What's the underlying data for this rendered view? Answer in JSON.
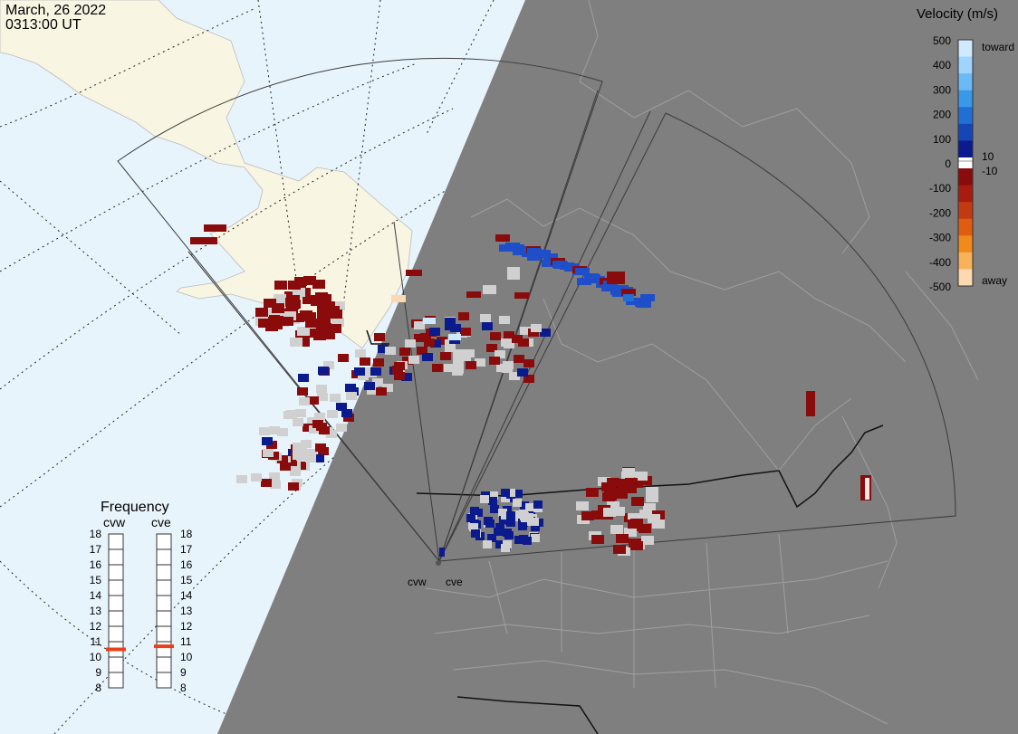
{
  "header": {
    "date": "March, 26 2022",
    "time": "0313:00 UT"
  },
  "legend": {
    "title": "Velocity (m/s)",
    "ticks": [
      "500",
      "400",
      "300",
      "200",
      "100",
      "0",
      "-100",
      "-200",
      "-300",
      "-400",
      "-500"
    ],
    "near_zero_pos": "10",
    "near_zero_neg": "-10",
    "toward_label": "toward",
    "away_label": "away",
    "colors": [
      "#cfe9ff",
      "#9fd4ff",
      "#6cbaf5",
      "#3a98e8",
      "#1f6fd4",
      "#1546b8",
      "#0b1a8c",
      "#ffffff",
      "#8a0b0b",
      "#a81c10",
      "#c43a10",
      "#df5d10",
      "#f08a1a",
      "#f7b25a",
      "#fcd9b0"
    ]
  },
  "frequency_panel": {
    "title": "Frequency",
    "radars": [
      {
        "name": "cvw",
        "freq_mhz": 10.5
      },
      {
        "name": "cve",
        "freq_mhz": 10.7
      }
    ],
    "scale": [
      "18",
      "17",
      "16",
      "15",
      "14",
      "13",
      "12",
      "11",
      "10",
      "9",
      "8"
    ],
    "marker_color": "#e8401c"
  },
  "radar_sites": [
    {
      "name": "cvw"
    },
    {
      "name": "cve"
    }
  ],
  "map": {
    "night_color": "#7f7f7f",
    "day_ocean_color": "#e8f4fc",
    "day_land_color": "#f8f5e3",
    "fov_line_color": "#3a3a3a",
    "grid_style": "dotted"
  }
}
